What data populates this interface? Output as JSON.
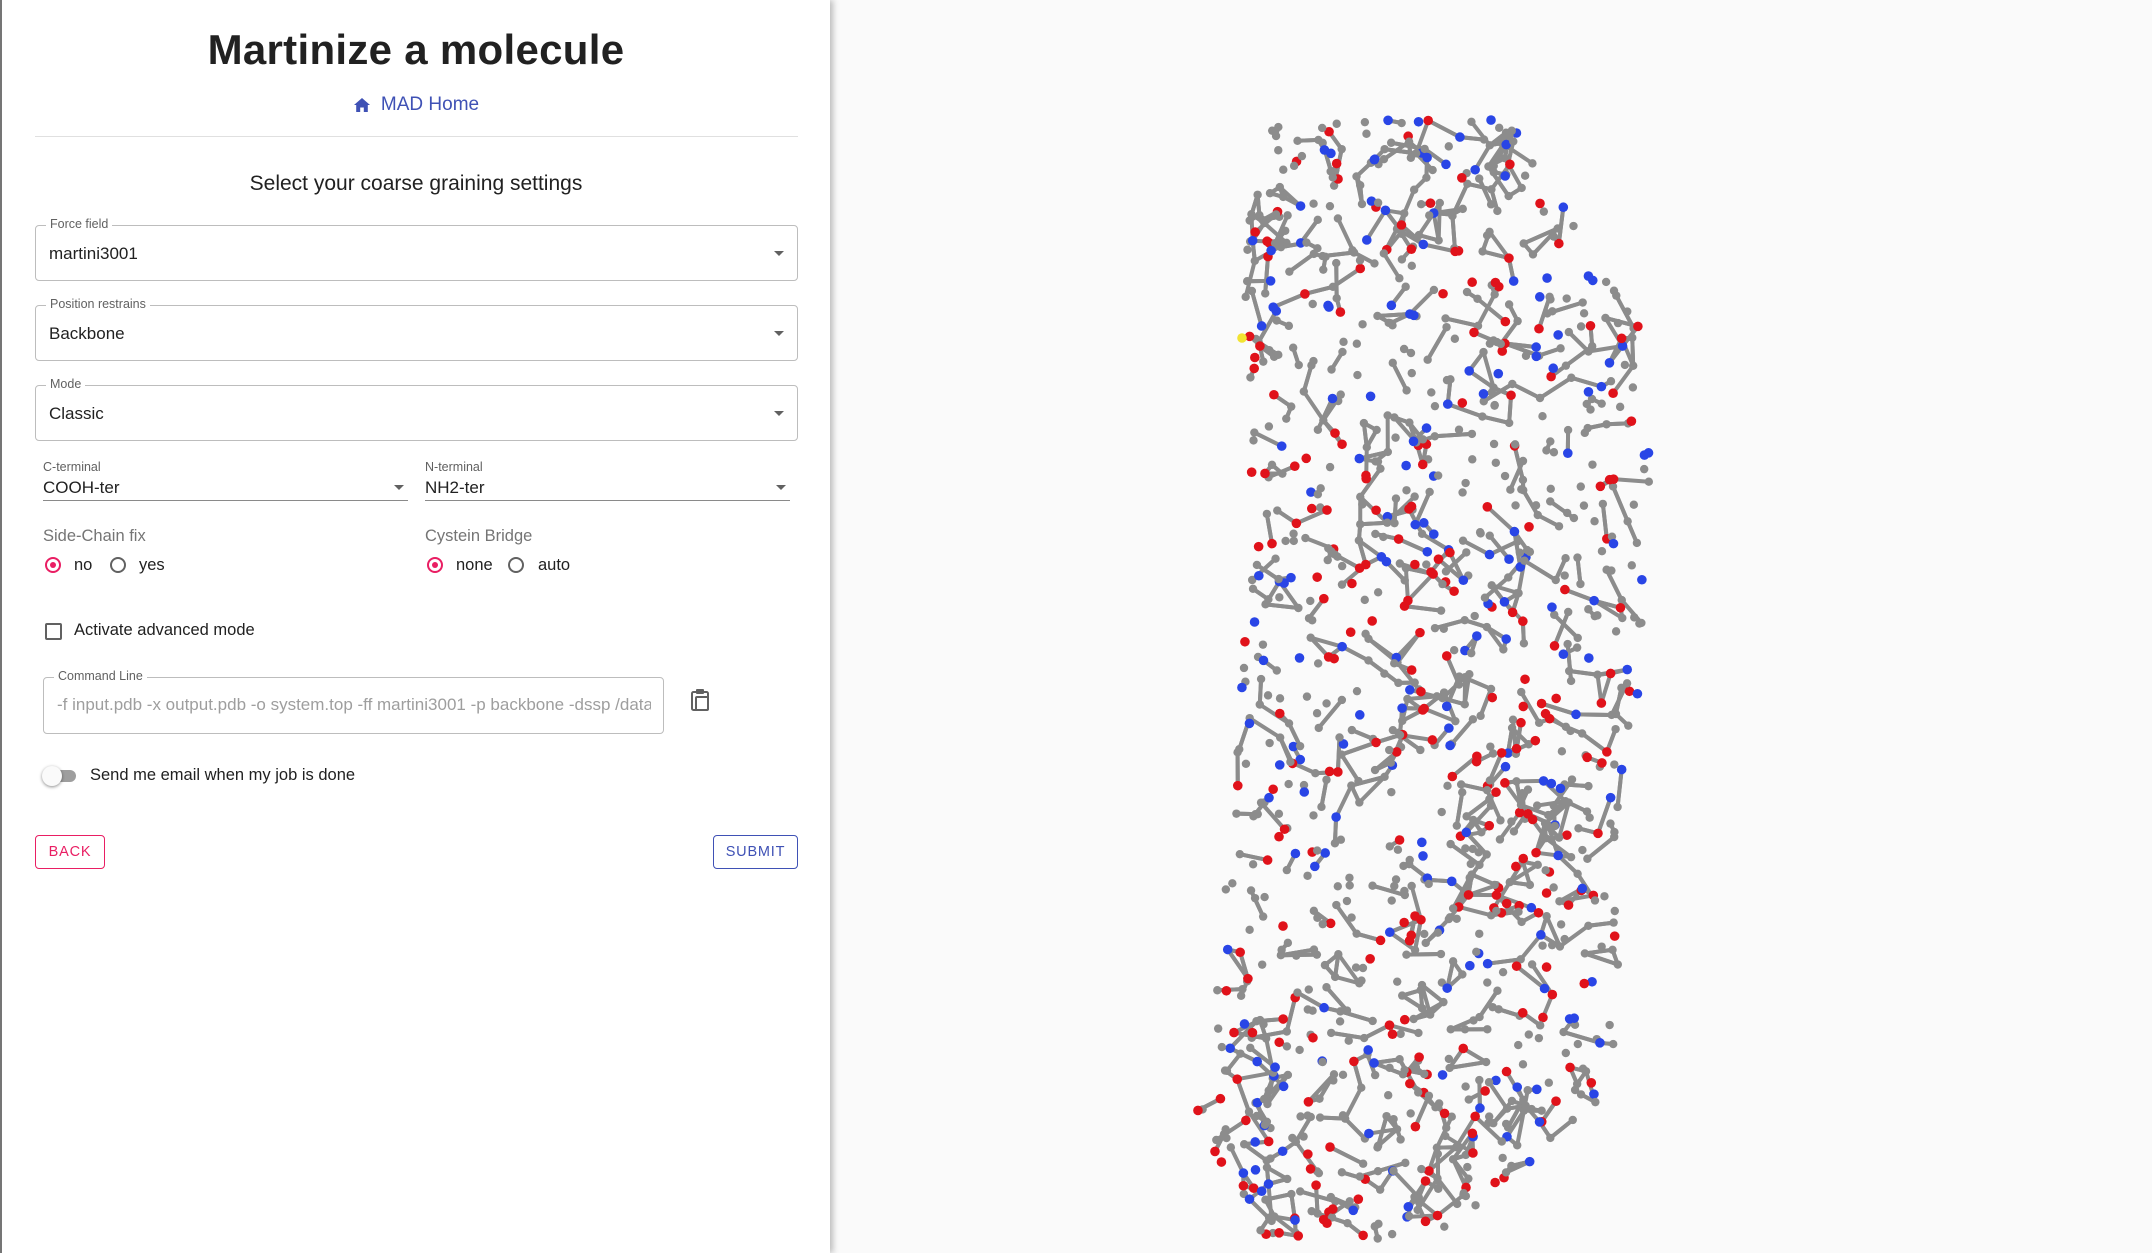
{
  "header": {
    "title": "Martinize a molecule",
    "home_link": "MAD Home",
    "section_title": "Select your coarse graining settings"
  },
  "form": {
    "force_field": {
      "label": "Force field",
      "value": "martini3001"
    },
    "position_restrains": {
      "label": "Position restrains",
      "value": "Backbone"
    },
    "mode": {
      "label": "Mode",
      "value": "Classic"
    },
    "c_terminal": {
      "label": "C-terminal",
      "value": "COOH-ter"
    },
    "n_terminal": {
      "label": "N-terminal",
      "value": "NH2-ter"
    },
    "side_chain_fix": {
      "label": "Side-Chain fix",
      "options": [
        "no",
        "yes"
      ],
      "selected": "no"
    },
    "cysteine_bridge": {
      "label": "Cystein Bridge",
      "options": [
        "none",
        "auto"
      ],
      "selected": "none"
    },
    "advanced_mode": {
      "label": "Activate advanced mode",
      "checked": false
    },
    "command_line": {
      "label": "Command Line",
      "value": "-f input.pdb -x output.pdb -o system.top -ff martini3001 -p backbone -dssp /data/s"
    },
    "email_toggle": {
      "label": "Send me email when my job is done",
      "on": false
    },
    "back_label": "Back",
    "submit_label": "Submit"
  },
  "viewer": {
    "atom_colors": {
      "carbon": "#8c8c8c",
      "oxygen": "#e0121a",
      "nitrogen": "#2945e6",
      "sulfur": "#f2e332"
    }
  },
  "colors": {
    "primary": "#3f51b5",
    "secondary": "#e91e63"
  }
}
